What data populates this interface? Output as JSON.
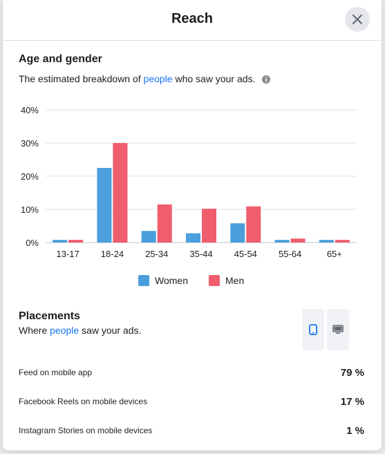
{
  "header": {
    "title": "Reach",
    "close_icon": "close-icon"
  },
  "age_gender": {
    "title": "Age and gender",
    "description_prefix": "The estimated breakdown of ",
    "description_link": "people",
    "description_suffix": " who saw your ads.",
    "info_icon": "info-icon"
  },
  "chart_data": {
    "type": "bar",
    "categories": [
      "13-17",
      "18-24",
      "25-34",
      "35-44",
      "45-54",
      "55-64",
      "65+"
    ],
    "series": [
      {
        "name": "Women",
        "color": "#4a9fdc",
        "values": [
          0.8,
          22.5,
          3.5,
          2.8,
          5.8,
          0.8,
          0.8
        ]
      },
      {
        "name": "Men",
        "color": "#f05d6c",
        "values": [
          0.8,
          30.0,
          11.5,
          10.2,
          10.9,
          1.2,
          0.8
        ]
      }
    ],
    "y_ticks": [
      "40%",
      "30%",
      "20%",
      "10%",
      "0%"
    ],
    "y_tick_values": [
      40,
      30,
      20,
      10,
      0
    ],
    "ylim": [
      0,
      40
    ],
    "grid": true,
    "legend_position": "bottom-center"
  },
  "legend": {
    "women": "Women",
    "men": "Men"
  },
  "placements": {
    "title": "Placements",
    "description_prefix": "Where ",
    "description_link": "people",
    "description_suffix": " saw your ads.",
    "devices": [
      {
        "icon": "mobile-icon",
        "selected": true
      },
      {
        "icon": "desktop-icon",
        "selected": false
      }
    ],
    "rows": [
      {
        "label": "Feed on mobile app",
        "value": "79 %"
      },
      {
        "label": "Facebook Reels on mobile devices",
        "value": "17 %"
      },
      {
        "label": "Instagram Stories on mobile devices",
        "value": "1 %"
      }
    ]
  },
  "colors": {
    "accent": "#1877f2",
    "women": "#4a9fdc",
    "men": "#f05d6c"
  }
}
